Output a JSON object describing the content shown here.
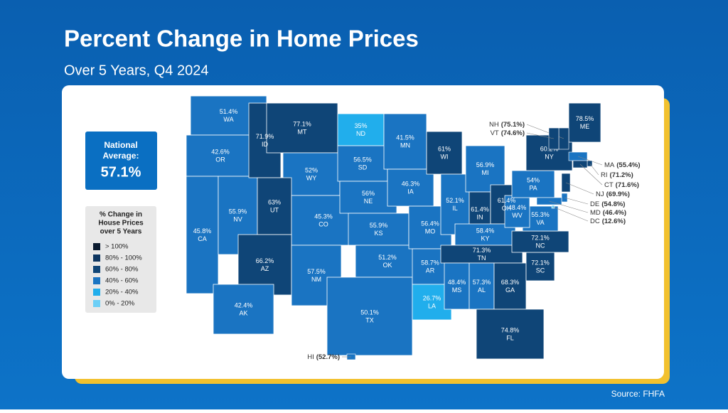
{
  "header": {
    "title": "Percent Change in Home Prices",
    "subtitle": "Over 5 Years, Q4 2024"
  },
  "national": {
    "lines": [
      "National",
      "Average:"
    ],
    "value": "57.1%"
  },
  "legend": {
    "title": [
      "% Change in",
      "House Prices",
      "over 5 Years"
    ],
    "items": [
      {
        "label": "> 100%",
        "color": "#0b1b30"
      },
      {
        "label": "80% - 100%",
        "color": "#0d3560"
      },
      {
        "label": "60% - 80%",
        "color": "#0f4577"
      },
      {
        "label": "40% - 60%",
        "color": "#1a74c2"
      },
      {
        "label": "20% - 40%",
        "color": "#21aeec"
      },
      {
        "label": "0% - 20%",
        "color": "#6ccff6"
      }
    ]
  },
  "states": [
    {
      "abbr": "WA",
      "value": "51.4%",
      "color": "#1a74c2"
    },
    {
      "abbr": "OR",
      "value": "42.6%",
      "color": "#1a74c2"
    },
    {
      "abbr": "CA",
      "value": "45.8%",
      "color": "#1a74c2"
    },
    {
      "abbr": "NV",
      "value": "55.9%",
      "color": "#1a74c2"
    },
    {
      "abbr": "ID",
      "value": "71.9%",
      "color": "#0f4577"
    },
    {
      "abbr": "MT",
      "value": "77.1%",
      "color": "#0f4577"
    },
    {
      "abbr": "WY",
      "value": "52%",
      "color": "#1a74c2"
    },
    {
      "abbr": "UT",
      "value": "63%",
      "color": "#0f4577"
    },
    {
      "abbr": "CO",
      "value": "45.3%",
      "color": "#1a74c2"
    },
    {
      "abbr": "AZ",
      "value": "66.2%",
      "color": "#0f4577"
    },
    {
      "abbr": "NM",
      "value": "57.5%",
      "color": "#1a74c2"
    },
    {
      "abbr": "ND",
      "value": "35%",
      "color": "#21aeec"
    },
    {
      "abbr": "SD",
      "value": "56.5%",
      "color": "#1a74c2"
    },
    {
      "abbr": "NE",
      "value": "56%",
      "color": "#1a74c2"
    },
    {
      "abbr": "KS",
      "value": "55.9%",
      "color": "#1a74c2"
    },
    {
      "abbr": "OK",
      "value": "51.2%",
      "color": "#1a74c2"
    },
    {
      "abbr": "TX",
      "value": "50.1%",
      "color": "#1a74c2"
    },
    {
      "abbr": "MN",
      "value": "41.5%",
      "color": "#1a74c2"
    },
    {
      "abbr": "IA",
      "value": "46.3%",
      "color": "#1a74c2"
    },
    {
      "abbr": "MO",
      "value": "56.4%",
      "color": "#1a74c2"
    },
    {
      "abbr": "AR",
      "value": "58.7%",
      "color": "#1a74c2"
    },
    {
      "abbr": "LA",
      "value": "26.7%",
      "color": "#21aeec"
    },
    {
      "abbr": "WI",
      "value": "61%",
      "color": "#0f4577"
    },
    {
      "abbr": "IL",
      "value": "52.1%",
      "color": "#1a74c2"
    },
    {
      "abbr": "MI",
      "value": "56.9%",
      "color": "#1a74c2"
    },
    {
      "abbr": "IN",
      "value": "61.4%",
      "color": "#0f4577"
    },
    {
      "abbr": "OH",
      "value": "61.4%",
      "color": "#0f4577"
    },
    {
      "abbr": "KY",
      "value": "58.4%",
      "color": "#1a74c2"
    },
    {
      "abbr": "TN",
      "value": "71.3%",
      "color": "#0f4577"
    },
    {
      "abbr": "MS",
      "value": "48.4%",
      "color": "#1a74c2"
    },
    {
      "abbr": "AL",
      "value": "57.3%",
      "color": "#1a74c2"
    },
    {
      "abbr": "GA",
      "value": "68.3%",
      "color": "#0f4577"
    },
    {
      "abbr": "FL",
      "value": "74.8%",
      "color": "#0f4577"
    },
    {
      "abbr": "SC",
      "value": "72.1%",
      "color": "#0f4577"
    },
    {
      "abbr": "NC",
      "value": "72.1%",
      "color": "#0f4577"
    },
    {
      "abbr": "VA",
      "value": "55.3%",
      "color": "#1a74c2"
    },
    {
      "abbr": "WV",
      "value": "48.4%",
      "color": "#1a74c2"
    },
    {
      "abbr": "PA",
      "value": "54%",
      "color": "#1a74c2"
    },
    {
      "abbr": "NY",
      "value": "60.2%",
      "color": "#0f4577"
    },
    {
      "abbr": "ME",
      "value": "78.5%",
      "color": "#0f4577"
    },
    {
      "abbr": "AK",
      "value": "42.4%",
      "color": "#1a74c2"
    }
  ],
  "callouts": [
    {
      "abbr": "NH",
      "value": "(75.1%)",
      "color": "#0f4577"
    },
    {
      "abbr": "VT",
      "value": "(74.6%)",
      "color": "#0f4577"
    },
    {
      "abbr": "MA",
      "value": "(55.4%)",
      "color": "#1a74c2"
    },
    {
      "abbr": "RI",
      "value": "(71.2%)",
      "color": "#0f4577"
    },
    {
      "abbr": "CT",
      "value": "(71.6%)",
      "color": "#0f4577"
    },
    {
      "abbr": "NJ",
      "value": "(69.9%)",
      "color": "#0f4577"
    },
    {
      "abbr": "DE",
      "value": "(54.8%)",
      "color": "#1a74c2"
    },
    {
      "abbr": "MD",
      "value": "(46.4%)",
      "color": "#1a74c2"
    },
    {
      "abbr": "DC",
      "value": "(12.6%)",
      "color": "#6ccff6"
    },
    {
      "abbr": "HI",
      "value": "(52.7%)",
      "color": "#1a74c2"
    }
  ],
  "source": "Source: FHFA"
}
